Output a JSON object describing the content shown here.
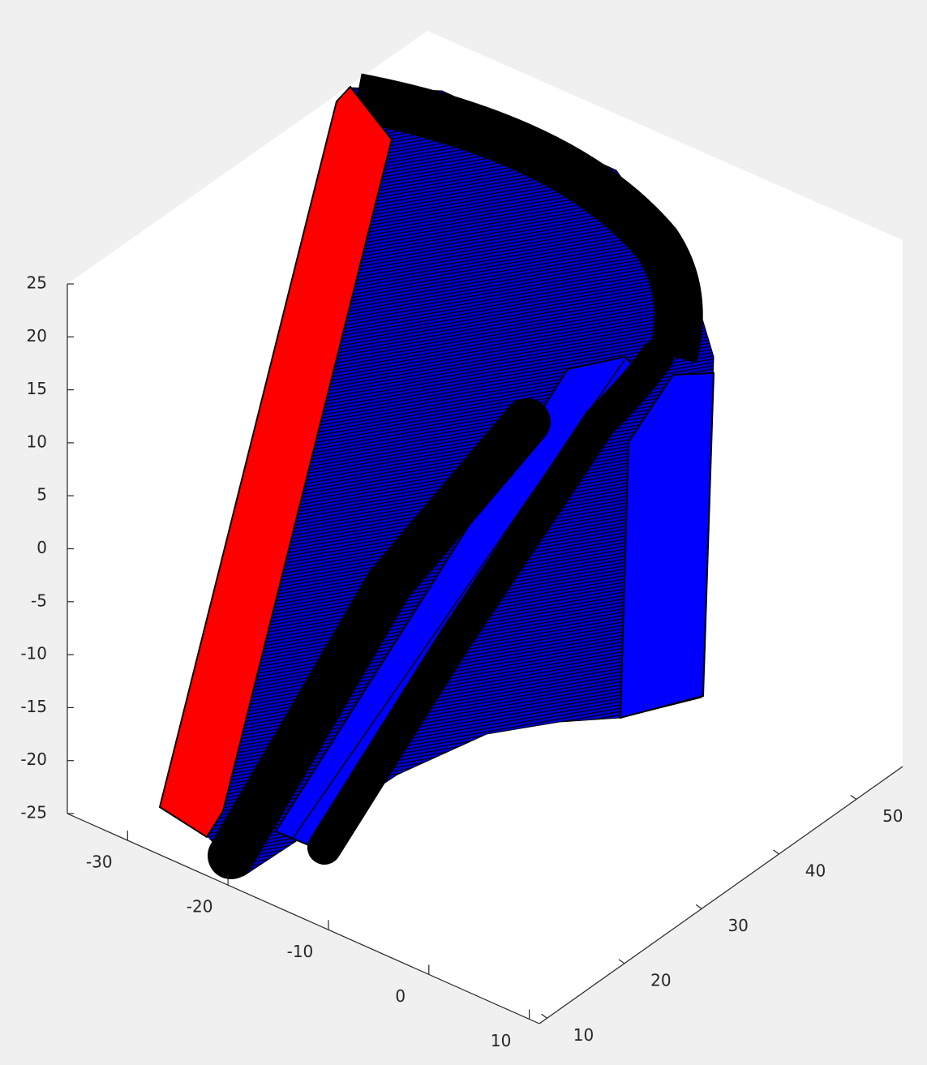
{
  "chart_data": {
    "type": "surface3d",
    "xlim": [
      -36,
      11
    ],
    "xticks": [
      -30,
      -20,
      -10,
      0,
      10
    ],
    "ylim": [
      9,
      56
    ],
    "yticks": [
      10,
      20,
      30,
      40,
      50
    ],
    "zlim": [
      -25,
      25
    ],
    "zticks": [
      -25,
      -20,
      -15,
      -10,
      -5,
      0,
      5,
      10,
      15,
      20,
      25
    ],
    "colors": [
      "#ff0000",
      "#0000ff",
      "#000000"
    ]
  }
}
